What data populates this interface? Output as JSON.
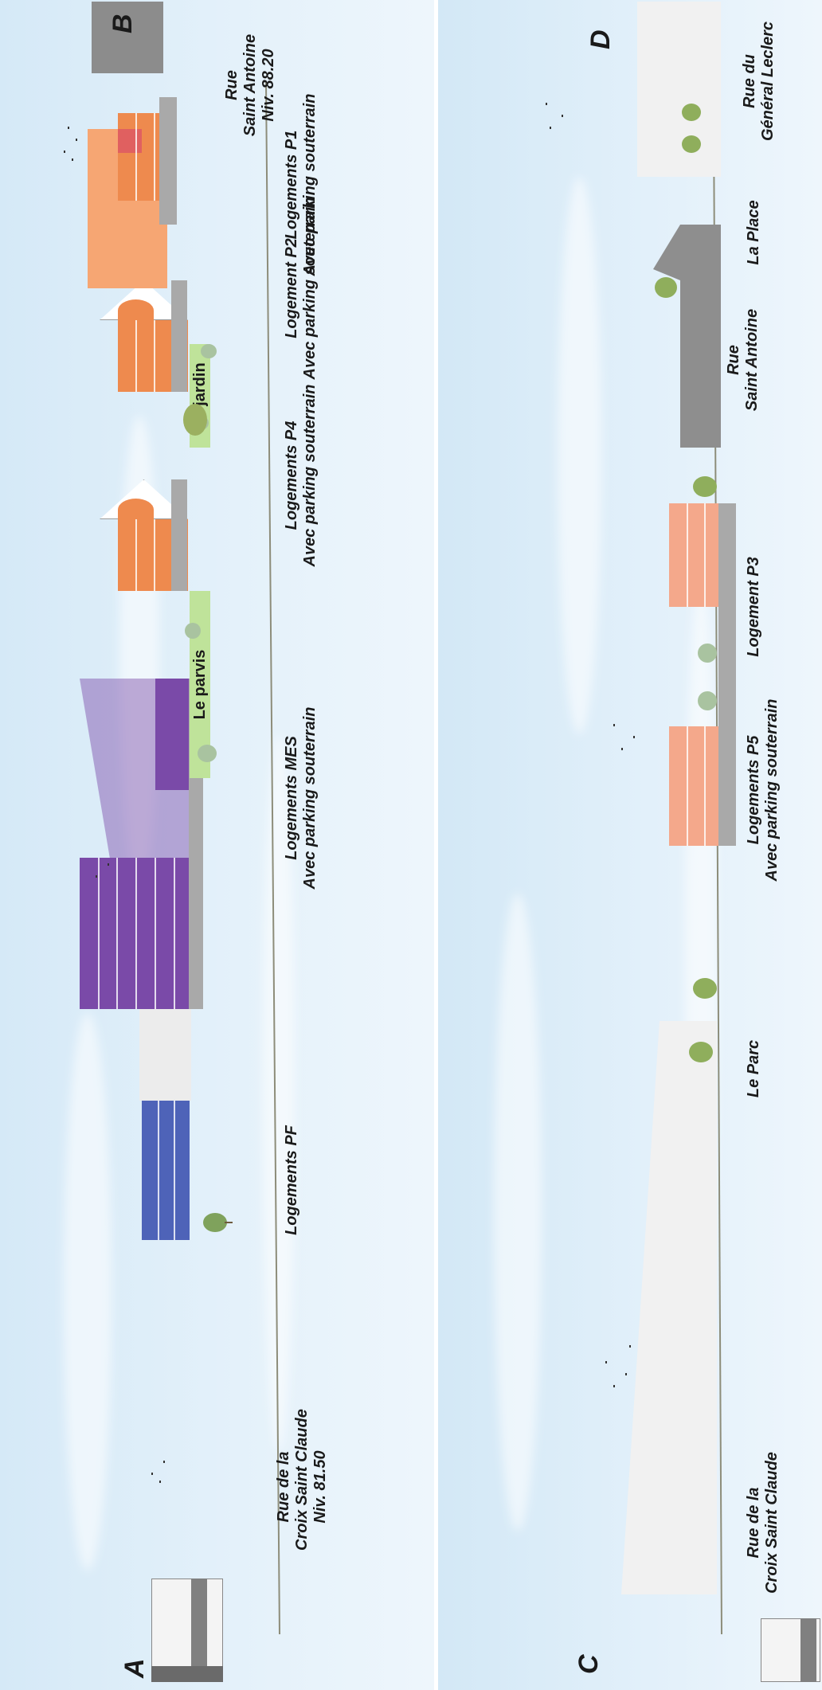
{
  "section_top": {
    "start_letter": "A",
    "end_letter": "B",
    "start_street": {
      "line1": "Rue de la",
      "line2": "Croix Saint Claude",
      "line3": "Niv. 81.50"
    },
    "end_street": {
      "line1": "Rue",
      "line2": "Saint Antoine",
      "line3": "Niv. 88.20"
    },
    "buildings": [
      {
        "line1": "Logements PF",
        "line2": ""
      },
      {
        "line1": "Logements MES",
        "line2": "Avec parking souterrain"
      },
      {
        "line1": "Logements P4",
        "line2": "Avec parking souterrain"
      },
      {
        "line1": "Logement P2",
        "line2": "Avec parking souterrain"
      },
      {
        "line1": "Logements P1",
        "line2": "Avec parking souterrain"
      }
    ],
    "spaces": {
      "parvis": "Le parvis",
      "jardin": "Le jardin"
    }
  },
  "section_bottom": {
    "start_letter": "C",
    "end_letter": "D",
    "start_street": {
      "line1": "Rue de la",
      "line2": "Croix Saint Claude"
    },
    "parc": "Le Parc",
    "buildings": [
      {
        "line1": "Logements P5",
        "line2": "Avec parking souterrain"
      },
      {
        "line1": "Logement P3",
        "line2": ""
      }
    ],
    "mid_street": {
      "line1": "Rue",
      "line2": "Saint Antoine"
    },
    "place": "La Place",
    "end_street": {
      "line1": "Rue du",
      "line2": "Général Leclerc"
    }
  },
  "colors": {
    "purple": "#7a4aa8",
    "purple_light": "#a89ad8",
    "blue": "#4e63b8",
    "orange": "#ee8a4e",
    "orange_light": "#f6a673",
    "salmon": "#f4a88b",
    "grey": "#a9a9a9",
    "green_label": "#bfe39a"
  }
}
